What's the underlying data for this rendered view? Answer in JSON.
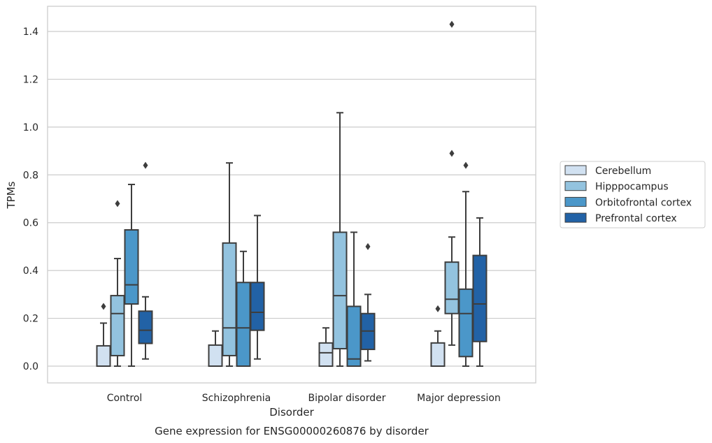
{
  "chart_data": {
    "type": "box",
    "caption": "Gene expression for ENSG00000260876 by disorder",
    "xlabel": "Disorder",
    "ylabel": "TPMs",
    "ylim": [
      -0.07,
      1.5
    ],
    "yticks": [
      0.0,
      0.2,
      0.4,
      0.6,
      0.8,
      1.0,
      1.2,
      1.4
    ],
    "ytick_labels": [
      "0.0",
      "0.2",
      "0.4",
      "0.6",
      "0.8",
      "1.0",
      "1.2",
      "1.4"
    ],
    "grid": "horizontal",
    "legend_placement": "right, outside plot",
    "categories": [
      "Control",
      "Schizophrenia",
      "Bipolar disorder",
      "Major depression"
    ],
    "series": [
      {
        "name": "Cerebellum",
        "color": "#d1e1f1",
        "boxes": [
          {
            "whisker_low": 0.0,
            "q1": 0.0,
            "median": 0.0,
            "q3": 0.085,
            "whisker_high": 0.18,
            "outliers": [
              0.25
            ]
          },
          {
            "whisker_low": 0.0,
            "q1": 0.0,
            "median": 0.0,
            "q3": 0.088,
            "whisker_high": 0.147,
            "outliers": []
          },
          {
            "whisker_low": 0.0,
            "q1": 0.0,
            "median": 0.056,
            "q3": 0.097,
            "whisker_high": 0.16,
            "outliers": []
          },
          {
            "whisker_low": 0.0,
            "q1": 0.0,
            "median": 0.0,
            "q3": 0.097,
            "whisker_high": 0.147,
            "outliers": [
              0.24
            ]
          }
        ]
      },
      {
        "name": "Hipppocampus",
        "color": "#93c3df",
        "boxes": [
          {
            "whisker_low": 0.0,
            "q1": 0.044,
            "median": 0.22,
            "q3": 0.295,
            "whisker_high": 0.45,
            "outliers": [
              0.68
            ]
          },
          {
            "whisker_low": 0.0,
            "q1": 0.044,
            "median": 0.16,
            "q3": 0.515,
            "whisker_high": 0.85,
            "outliers": []
          },
          {
            "whisker_low": 0.0,
            "q1": 0.073,
            "median": 0.295,
            "q3": 0.56,
            "whisker_high": 1.06,
            "outliers": []
          },
          {
            "whisker_low": 0.088,
            "q1": 0.22,
            "median": 0.28,
            "q3": 0.435,
            "whisker_high": 0.54,
            "outliers": [
              0.89,
              1.43
            ]
          }
        ]
      },
      {
        "name": "Orbitofrontal cortex",
        "color": "#4b97c9",
        "boxes": [
          {
            "whisker_low": 0.0,
            "q1": 0.26,
            "median": 0.34,
            "q3": 0.57,
            "whisker_high": 0.76,
            "outliers": []
          },
          {
            "whisker_low": 0.0,
            "q1": 0.0,
            "median": 0.16,
            "q3": 0.35,
            "whisker_high": 0.48,
            "outliers": []
          },
          {
            "whisker_low": 0.0,
            "q1": 0.0,
            "median": 0.03,
            "q3": 0.25,
            "whisker_high": 0.56,
            "outliers": []
          },
          {
            "whisker_low": 0.0,
            "q1": 0.04,
            "median": 0.22,
            "q3": 0.322,
            "whisker_high": 0.73,
            "outliers": [
              0.84
            ]
          }
        ]
      },
      {
        "name": "Prefrontal cortex",
        "color": "#2262a6",
        "boxes": [
          {
            "whisker_low": 0.03,
            "q1": 0.095,
            "median": 0.15,
            "q3": 0.23,
            "whisker_high": 0.29,
            "outliers": [
              0.84
            ]
          },
          {
            "whisker_low": 0.03,
            "q1": 0.15,
            "median": 0.225,
            "q3": 0.35,
            "whisker_high": 0.63,
            "outliers": []
          },
          {
            "whisker_low": 0.022,
            "q1": 0.07,
            "median": 0.147,
            "q3": 0.22,
            "whisker_high": 0.3,
            "outliers": [
              0.5
            ]
          },
          {
            "whisker_low": 0.0,
            "q1": 0.103,
            "median": 0.26,
            "q3": 0.463,
            "whisker_high": 0.62,
            "outliers": []
          }
        ]
      }
    ]
  }
}
